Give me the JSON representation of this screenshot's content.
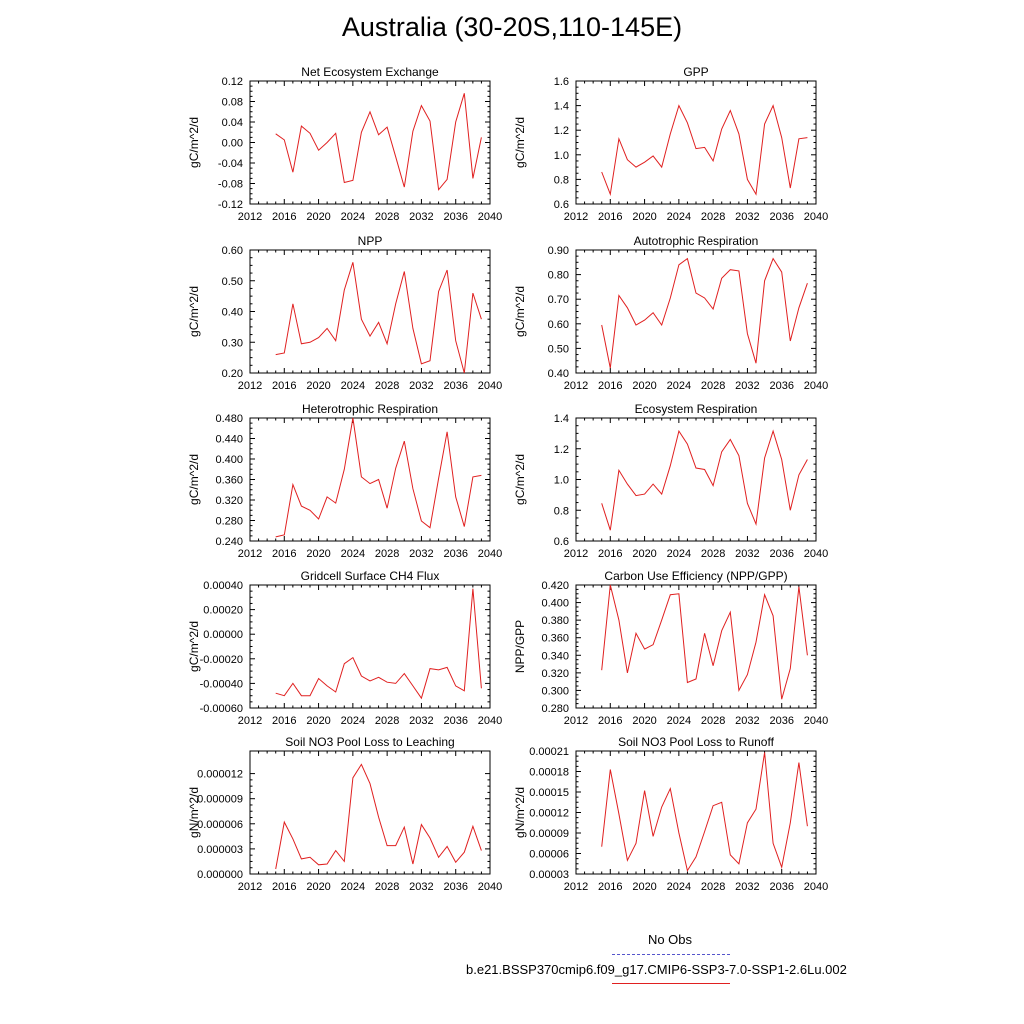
{
  "page": {
    "title": "Australia (30-20S,110-145E)"
  },
  "legend": {
    "obs_label": "No Obs",
    "obs_color": "#5555cc",
    "model_label": "b.e21.BSSP370cmip6.f09_g17.CMIP6-SSP3-7.0-SSP1-2.6Lu.002",
    "model_color": "#e02020"
  },
  "chart_data": [
    {
      "type": "line",
      "title": "Net Ecosystem Exchange",
      "ylabel": "gC/m^2/d",
      "xlim": [
        2012,
        2040
      ],
      "xticks": [
        "2012",
        "2016",
        "2020",
        "2024",
        "2028",
        "2032",
        "2036",
        "2040"
      ],
      "ylim": [
        -0.12,
        0.12
      ],
      "yticks": [
        "-0.12",
        "-0.08",
        "-0.04",
        "0.00",
        "0.04",
        "0.08",
        "0.12"
      ],
      "series": [
        {
          "x": [
            2015,
            2016,
            2017,
            2018,
            2019,
            2020,
            2021,
            2022,
            2023,
            2024,
            2025,
            2026,
            2027,
            2028,
            2029,
            2030,
            2031,
            2032,
            2033,
            2034,
            2035,
            2036,
            2037,
            2038,
            2039
          ],
          "values": [
            0.017,
            0.005,
            -0.058,
            0.032,
            0.018,
            -0.015,
            0.0,
            0.018,
            -0.078,
            -0.074,
            0.02,
            0.06,
            0.015,
            0.03,
            -0.028,
            -0.087,
            0.022,
            0.072,
            0.042,
            -0.092,
            -0.072,
            0.04,
            0.096,
            -0.07,
            0.01
          ]
        }
      ]
    },
    {
      "type": "line",
      "title": "GPP",
      "ylabel": "gC/m^2/d",
      "xlim": [
        2012,
        2040
      ],
      "xticks": [
        "2012",
        "2016",
        "2020",
        "2024",
        "2028",
        "2032",
        "2036",
        "2040"
      ],
      "ylim": [
        0.6,
        1.6
      ],
      "yticks": [
        "0.6",
        "0.8",
        "1.0",
        "1.2",
        "1.4",
        "1.6"
      ],
      "series": [
        {
          "x": [
            2015,
            2016,
            2017,
            2018,
            2019,
            2020,
            2021,
            2022,
            2023,
            2024,
            2025,
            2026,
            2027,
            2028,
            2029,
            2030,
            2031,
            2032,
            2033,
            2034,
            2035,
            2036,
            2037,
            2038,
            2039
          ],
          "values": [
            0.86,
            0.68,
            1.13,
            0.96,
            0.9,
            0.94,
            0.99,
            0.9,
            1.17,
            1.4,
            1.26,
            1.05,
            1.06,
            0.95,
            1.21,
            1.36,
            1.17,
            0.8,
            0.68,
            1.25,
            1.4,
            1.14,
            0.73,
            1.13,
            1.14
          ]
        }
      ]
    },
    {
      "type": "line",
      "title": "NPP",
      "ylabel": "gC/m^2/d",
      "xlim": [
        2012,
        2040
      ],
      "xticks": [
        "2012",
        "2016",
        "2020",
        "2024",
        "2028",
        "2032",
        "2036",
        "2040"
      ],
      "ylim": [
        0.2,
        0.6
      ],
      "yticks": [
        "0.20",
        "0.30",
        "0.40",
        "0.50",
        "0.60"
      ],
      "series": [
        {
          "x": [
            2015,
            2016,
            2017,
            2018,
            2019,
            2020,
            2021,
            2022,
            2023,
            2024,
            2025,
            2026,
            2027,
            2028,
            2029,
            2030,
            2031,
            2032,
            2033,
            2034,
            2035,
            2036,
            2037,
            2038,
            2039
          ],
          "values": [
            0.26,
            0.265,
            0.425,
            0.295,
            0.3,
            0.315,
            0.345,
            0.305,
            0.47,
            0.56,
            0.375,
            0.32,
            0.365,
            0.295,
            0.425,
            0.53,
            0.345,
            0.23,
            0.24,
            0.465,
            0.535,
            0.305,
            0.2,
            0.46,
            0.375
          ]
        }
      ]
    },
    {
      "type": "line",
      "title": "Autotrophic Respiration",
      "ylabel": "gC/m^2/d",
      "xlim": [
        2012,
        2040
      ],
      "xticks": [
        "2012",
        "2016",
        "2020",
        "2024",
        "2028",
        "2032",
        "2036",
        "2040"
      ],
      "ylim": [
        0.4,
        0.9
      ],
      "yticks": [
        "0.40",
        "0.50",
        "0.60",
        "0.70",
        "0.80",
        "0.90"
      ],
      "series": [
        {
          "x": [
            2015,
            2016,
            2017,
            2018,
            2019,
            2020,
            2021,
            2022,
            2023,
            2024,
            2025,
            2026,
            2027,
            2028,
            2029,
            2030,
            2031,
            2032,
            2033,
            2034,
            2035,
            2036,
            2037,
            2038,
            2039
          ],
          "values": [
            0.595,
            0.42,
            0.715,
            0.665,
            0.595,
            0.615,
            0.645,
            0.595,
            0.705,
            0.84,
            0.865,
            0.725,
            0.705,
            0.66,
            0.785,
            0.82,
            0.815,
            0.56,
            0.44,
            0.775,
            0.865,
            0.81,
            0.53,
            0.665,
            0.765
          ]
        }
      ]
    },
    {
      "type": "line",
      "title": "Heterotrophic Respiration",
      "ylabel": "gC/m^2/d",
      "xlim": [
        2012,
        2040
      ],
      "xticks": [
        "2012",
        "2016",
        "2020",
        "2024",
        "2028",
        "2032",
        "2036",
        "2040"
      ],
      "ylim": [
        0.24,
        0.48
      ],
      "yticks": [
        "0.240",
        "0.280",
        "0.320",
        "0.360",
        "0.400",
        "0.440",
        "0.480"
      ],
      "series": [
        {
          "x": [
            2015,
            2016,
            2017,
            2018,
            2019,
            2020,
            2021,
            2022,
            2023,
            2024,
            2025,
            2026,
            2027,
            2028,
            2029,
            2030,
            2031,
            2032,
            2033,
            2034,
            2035,
            2036,
            2037,
            2038,
            2039
          ],
          "values": [
            0.248,
            0.252,
            0.35,
            0.308,
            0.3,
            0.283,
            0.326,
            0.314,
            0.38,
            0.48,
            0.365,
            0.352,
            0.36,
            0.304,
            0.382,
            0.435,
            0.342,
            0.279,
            0.266,
            0.362,
            0.453,
            0.326,
            0.268,
            0.365,
            0.368
          ]
        }
      ]
    },
    {
      "type": "line",
      "title": "Ecosystem Respiration",
      "ylabel": "gC/m^2/d",
      "xlim": [
        2012,
        2040
      ],
      "xticks": [
        "2012",
        "2016",
        "2020",
        "2024",
        "2028",
        "2032",
        "2036",
        "2040"
      ],
      "ylim": [
        0.6,
        1.4
      ],
      "yticks": [
        "0.6",
        "0.8",
        "1.0",
        "1.2",
        "1.4"
      ],
      "series": [
        {
          "x": [
            2015,
            2016,
            2017,
            2018,
            2019,
            2020,
            2021,
            2022,
            2023,
            2024,
            2025,
            2026,
            2027,
            2028,
            2029,
            2030,
            2031,
            2032,
            2033,
            2034,
            2035,
            2036,
            2037,
            2038,
            2039
          ],
          "values": [
            0.845,
            0.67,
            1.06,
            0.97,
            0.895,
            0.905,
            0.97,
            0.905,
            1.09,
            1.315,
            1.23,
            1.075,
            1.065,
            0.96,
            1.18,
            1.26,
            1.155,
            0.845,
            0.71,
            1.14,
            1.315,
            1.13,
            0.8,
            1.03,
            1.13
          ]
        }
      ]
    },
    {
      "type": "line",
      "title": "Gridcell Surface CH4 Flux",
      "ylabel": "gC/m^2/d",
      "xlim": [
        2012,
        2040
      ],
      "xticks": [
        "2012",
        "2016",
        "2020",
        "2024",
        "2028",
        "2032",
        "2036",
        "2040"
      ],
      "ylim": [
        -0.0006,
        0.0004
      ],
      "yticks": [
        "-0.00060",
        "-0.00040",
        "-0.00020",
        "0.00000",
        "0.00020",
        "0.00040"
      ],
      "series": [
        {
          "x": [
            2015,
            2016,
            2017,
            2018,
            2019,
            2020,
            2021,
            2022,
            2023,
            2024,
            2025,
            2026,
            2027,
            2028,
            2029,
            2030,
            2031,
            2032,
            2033,
            2034,
            2035,
            2036,
            2037,
            2038,
            2039
          ],
          "values": [
            -0.00048,
            -0.0005,
            -0.0004,
            -0.0005,
            -0.0005,
            -0.00036,
            -0.00042,
            -0.00047,
            -0.00024,
            -0.00019,
            -0.00034,
            -0.00038,
            -0.00035,
            -0.00039,
            -0.0004,
            -0.00032,
            -0.00042,
            -0.00052,
            -0.00028,
            -0.00029,
            -0.00027,
            -0.00042,
            -0.00046,
            0.00037,
            -0.00044
          ]
        }
      ]
    },
    {
      "type": "line",
      "title": "Carbon Use Efficiency (NPP/GPP)",
      "ylabel": "NPP/GPP",
      "xlim": [
        2012,
        2040
      ],
      "xticks": [
        "2012",
        "2016",
        "2020",
        "2024",
        "2028",
        "2032",
        "2036",
        "2040"
      ],
      "ylim": [
        0.28,
        0.42
      ],
      "yticks": [
        "0.280",
        "0.300",
        "0.320",
        "0.340",
        "0.360",
        "0.380",
        "0.400",
        "0.420"
      ],
      "series": [
        {
          "x": [
            2015,
            2016,
            2017,
            2018,
            2019,
            2020,
            2021,
            2022,
            2023,
            2024,
            2025,
            2026,
            2027,
            2028,
            2029,
            2030,
            2031,
            2032,
            2033,
            2034,
            2035,
            2036,
            2037,
            2038,
            2039
          ],
          "values": [
            0.323,
            0.42,
            0.38,
            0.32,
            0.365,
            0.347,
            0.352,
            0.38,
            0.409,
            0.41,
            0.309,
            0.313,
            0.365,
            0.328,
            0.368,
            0.389,
            0.3,
            0.318,
            0.355,
            0.409,
            0.385,
            0.29,
            0.325,
            0.418,
            0.34
          ]
        }
      ]
    },
    {
      "type": "line",
      "title": "Soil NO3 Pool Loss to Leaching",
      "ylabel": "gN/m^2/d",
      "xlim": [
        2012,
        2040
      ],
      "xticks": [
        "2012",
        "2016",
        "2020",
        "2024",
        "2028",
        "2032",
        "2036",
        "2040"
      ],
      "ylim": [
        0.0,
        1.47e-05
      ],
      "yticks": [
        "0.000000",
        "0.000003",
        "0.000006",
        "0.000009",
        "0.000012"
      ],
      "series": [
        {
          "x": [
            2015,
            2016,
            2017,
            2018,
            2019,
            2020,
            2021,
            2022,
            2023,
            2024,
            2025,
            2026,
            2027,
            2028,
            2029,
            2030,
            2031,
            2032,
            2033,
            2034,
            2035,
            2036,
            2037,
            2038,
            2039
          ],
          "values": [
            6e-07,
            6.2e-06,
            4.2e-06,
            1.8e-06,
            2e-06,
            1.1e-06,
            1.2e-06,
            2.8e-06,
            1.5e-06,
            1.15e-05,
            1.31e-05,
            1.08e-05,
            6.8e-06,
            3.4e-06,
            3.4e-06,
            5.6e-06,
            1.2e-06,
            5.9e-06,
            4.3e-06,
            2e-06,
            3.3e-06,
            1.4e-06,
            2.6e-06,
            5.7e-06,
            2.8e-06
          ]
        }
      ]
    },
    {
      "type": "line",
      "title": "Soil NO3 Pool Loss to Runoff",
      "ylabel": "gN/m^2/d",
      "xlim": [
        2012,
        2040
      ],
      "xticks": [
        "2012",
        "2016",
        "2020",
        "2024",
        "2028",
        "2032",
        "2036",
        "2040"
      ],
      "ylim": [
        3e-05,
        0.00021
      ],
      "yticks": [
        "0.00003",
        "0.00006",
        "0.00009",
        "0.00012",
        "0.00015",
        "0.00018",
        "0.00021"
      ],
      "series": [
        {
          "x": [
            2015,
            2016,
            2017,
            2018,
            2019,
            2020,
            2021,
            2022,
            2023,
            2024,
            2025,
            2026,
            2027,
            2028,
            2029,
            2030,
            2031,
            2032,
            2033,
            2034,
            2035,
            2036,
            2037,
            2038,
            2039
          ],
          "values": [
            7e-05,
            0.000183,
            0.000118,
            5e-05,
            7.5e-05,
            0.000152,
            8.5e-05,
            0.000128,
            0.000155,
            9e-05,
            3.5e-05,
            5.5e-05,
            9.2e-05,
            0.00013,
            0.000135,
            5.8e-05,
            4.5e-05,
            0.000105,
            0.000125,
            0.000208,
            7.5e-05,
            4e-05,
            0.000105,
            0.000193,
            0.0001
          ]
        }
      ]
    }
  ]
}
